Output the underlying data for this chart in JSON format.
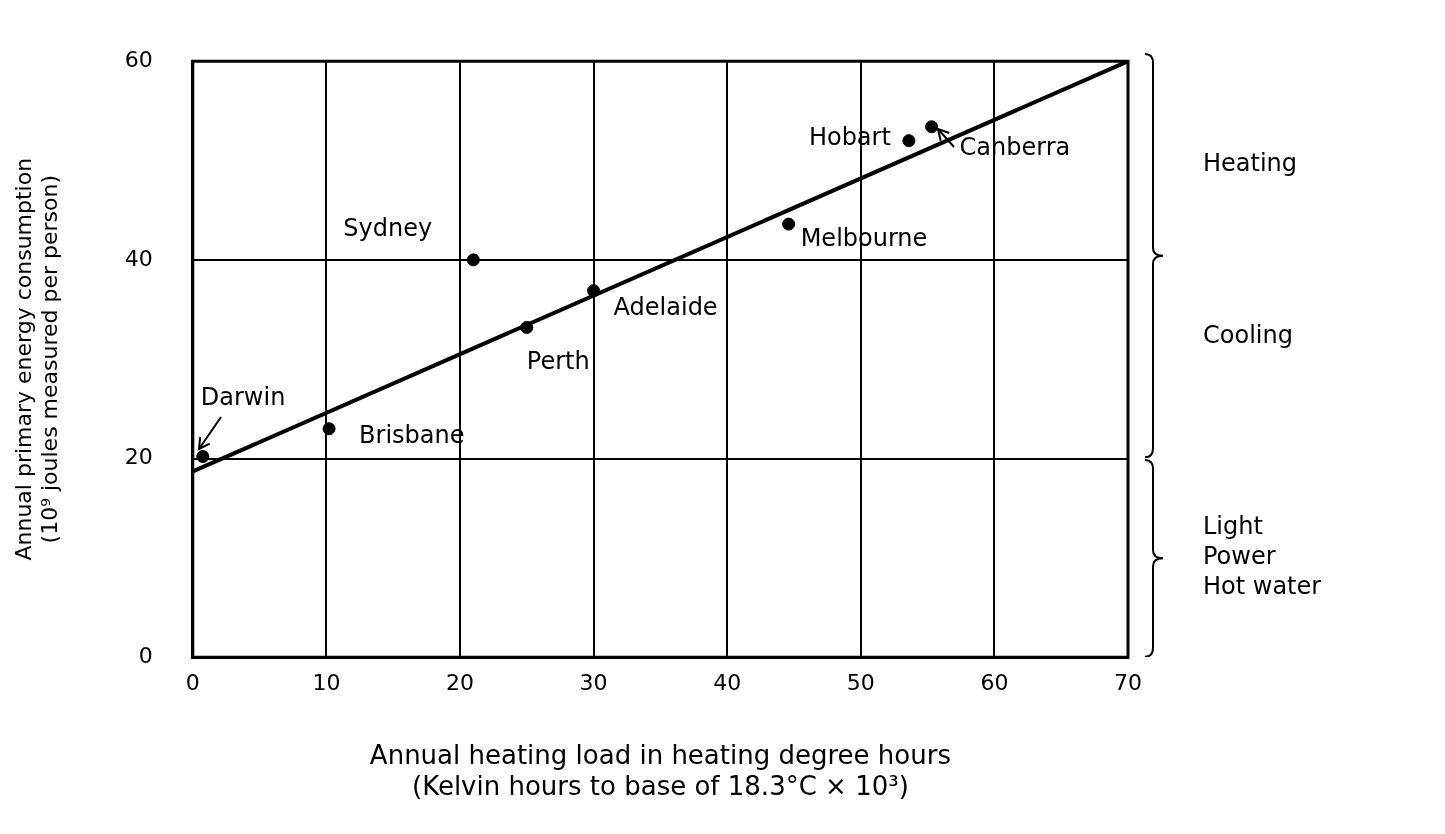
{
  "chart_data": {
    "type": "scatter",
    "xlabel": "Annual heating load in heating degree hours\n(Kelvin hours to base of 18.3°C × 10³)",
    "ylabel": "Annual primary energy consumption\n(10⁹ joules measured per person)",
    "x": [
      0.75,
      10.2,
      21.0,
      25.0,
      30.0,
      44.6,
      53.6,
      55.3
    ],
    "series": [
      {
        "color": "#000000",
        "marker": "circle",
        "values": [
          20.2,
          23.0,
          40.0,
          33.2,
          36.9,
          43.6,
          52.0,
          53.4
        ]
      },
      {
        "type": "line",
        "color": "#000000",
        "marker": "none",
        "x": [
          0,
          70
        ],
        "values": [
          18.7,
          60
        ]
      }
    ],
    "xlim": [
      0,
      70
    ],
    "xticks": [
      0,
      10,
      20,
      30,
      40,
      50,
      60,
      70
    ],
    "ylim": [
      0,
      60
    ],
    "yticks": [
      0,
      20,
      40,
      60
    ],
    "grid": true,
    "line_style": "solid",
    "annotations": [
      {
        "text": "Darwin",
        "x": 0.75,
        "y": 20.2
      },
      {
        "text": "Brisbane",
        "x": 10.2,
        "y": 23.0
      },
      {
        "text": "Sydney",
        "x": 21.0,
        "y": 40.0
      },
      {
        "text": "Perth",
        "x": 25.0,
        "y": 33.2
      },
      {
        "text": "Adelaide",
        "x": 30.0,
        "y": 36.9
      },
      {
        "text": "Melbourne",
        "x": 44.6,
        "y": 43.6
      },
      {
        "text": "Hobart",
        "x": 53.6,
        "y": 52.0
      },
      {
        "text": "Canberra",
        "x": 55.3,
        "y": 53.4
      },
      "Heating",
      "Cooling",
      "Light\nPower\nHot water"
    ]
  }
}
